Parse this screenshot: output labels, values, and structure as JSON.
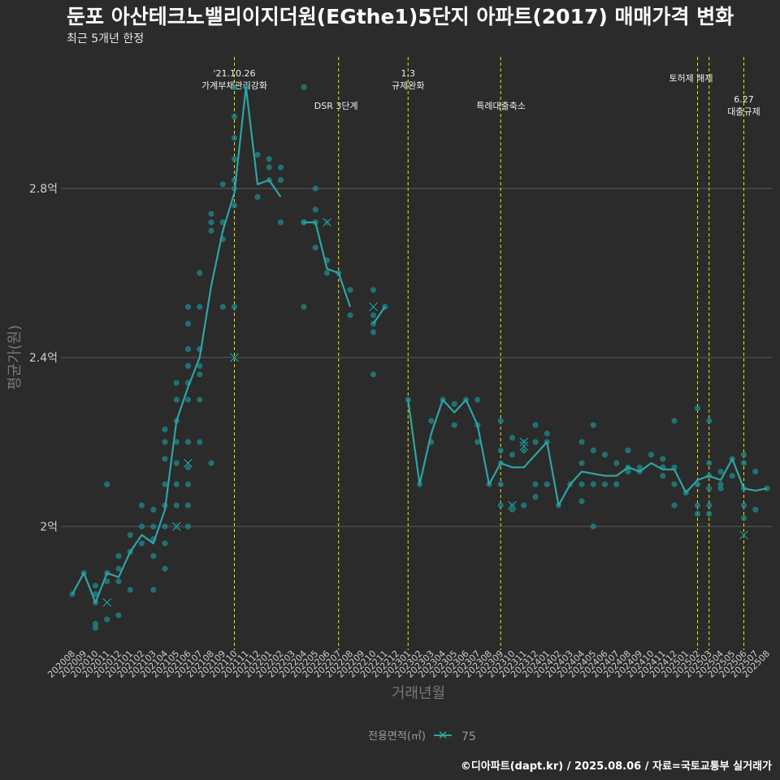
{
  "title": "둔포 아산테크노밸리이지더원(EGthe1)5단지 아파트(2017) 매매가격 변화",
  "subtitle": "최근 5개년 한정",
  "caption": "©디아파트(dapt.kr) / 2025.08.06 / 자료=국토교통부 실거래가",
  "colors": {
    "background": "#2b2b2b",
    "grid": "#5a5a5a",
    "line": "#2fa3a3",
    "point": "#1f8a8a",
    "event_line": "#e8e800"
  },
  "chart_data": {
    "type": "line",
    "xlabel": "거래년월",
    "ylabel": "평균가(원)",
    "ylim": [
      1.72,
      3.13
    ],
    "y_ticks": [
      {
        "value": 2.0,
        "label": "2억"
      },
      {
        "value": 2.4,
        "label": "2.4억"
      },
      {
        "value": 2.8,
        "label": "2.8억"
      }
    ],
    "grid": true,
    "categories": [
      "202008",
      "202009",
      "202010",
      "202011",
      "202012",
      "202101",
      "202102",
      "202103",
      "202104",
      "202105",
      "202106",
      "202107",
      "202108",
      "202109",
      "202110",
      "202111",
      "202112",
      "202201",
      "202202",
      "202203",
      "202204",
      "202205",
      "202206",
      "202207",
      "202208",
      "202209",
      "202210",
      "202211",
      "202212",
      "202301",
      "202302",
      "202303",
      "202304",
      "202305",
      "202306",
      "202307",
      "202308",
      "202309",
      "202310",
      "202311",
      "202312",
      "202401",
      "202402",
      "202403",
      "202404",
      "202405",
      "202406",
      "202407",
      "202408",
      "202409",
      "202410",
      "202411",
      "202412",
      "202501",
      "202502",
      "202503",
      "202504",
      "202505",
      "202506",
      "202507",
      "202508"
    ],
    "series": [
      {
        "name": "75",
        "values": [
          1.84,
          1.89,
          1.82,
          1.89,
          1.88,
          1.94,
          1.98,
          1.96,
          2.04,
          2.25,
          2.33,
          2.4,
          2.57,
          2.7,
          2.79,
          3.04,
          2.81,
          2.82,
          2.78,
          null,
          2.72,
          2.72,
          2.61,
          2.6,
          2.52,
          null,
          2.48,
          2.52,
          null,
          2.3,
          2.1,
          2.22,
          2.3,
          2.27,
          2.3,
          2.24,
          2.1,
          2.15,
          2.14,
          2.14,
          2.17,
          2.2,
          2.05,
          2.1,
          2.13,
          2.125,
          2.12,
          2.12,
          2.14,
          2.13,
          2.15,
          2.135,
          2.135,
          2.08,
          2.11,
          2.12,
          2.11,
          2.16,
          2.09,
          2.085,
          2.09
        ]
      }
    ],
    "scatter": [
      [
        0,
        1.84
      ],
      [
        1,
        1.89
      ],
      [
        2,
        1.86
      ],
      [
        2,
        1.84
      ],
      [
        2,
        1.82
      ],
      [
        2,
        1.77
      ],
      [
        2,
        1.76
      ],
      [
        3,
        1.89
      ],
      [
        3,
        1.87
      ],
      [
        3,
        1.78
      ],
      [
        3,
        2.1
      ],
      [
        4,
        1.93
      ],
      [
        4,
        1.9
      ],
      [
        4,
        1.87
      ],
      [
        4,
        1.79
      ],
      [
        5,
        1.98
      ],
      [
        5,
        1.94
      ],
      [
        5,
        1.85
      ],
      [
        6,
        2.05
      ],
      [
        6,
        2.0
      ],
      [
        6,
        1.96
      ],
      [
        7,
        2.04
      ],
      [
        7,
        2.0
      ],
      [
        7,
        1.97
      ],
      [
        7,
        1.93
      ],
      [
        7,
        1.85
      ],
      [
        8,
        2.23
      ],
      [
        8,
        2.2
      ],
      [
        8,
        2.16
      ],
      [
        8,
        2.1
      ],
      [
        8,
        2.05
      ],
      [
        8,
        2.0
      ],
      [
        8,
        1.96
      ],
      [
        8,
        1.9
      ],
      [
        9,
        2.34
      ],
      [
        9,
        2.3
      ],
      [
        9,
        2.25
      ],
      [
        9,
        2.2
      ],
      [
        9,
        2.15
      ],
      [
        9,
        2.1
      ],
      [
        9,
        2.05
      ],
      [
        9,
        2.0
      ],
      [
        10,
        2.52
      ],
      [
        10,
        2.48
      ],
      [
        10,
        2.42
      ],
      [
        10,
        2.38
      ],
      [
        10,
        2.34
      ],
      [
        10,
        2.3
      ],
      [
        10,
        2.2
      ],
      [
        10,
        2.14
      ],
      [
        10,
        2.1
      ],
      [
        10,
        2.05
      ],
      [
        10,
        2.0
      ],
      [
        11,
        2.6
      ],
      [
        11,
        2.52
      ],
      [
        11,
        2.42
      ],
      [
        11,
        2.38
      ],
      [
        11,
        2.36
      ],
      [
        11,
        2.3
      ],
      [
        11,
        2.2
      ],
      [
        12,
        2.74
      ],
      [
        12,
        2.72
      ],
      [
        12,
        2.7
      ],
      [
        12,
        2.15
      ],
      [
        13,
        2.81
      ],
      [
        13,
        2.72
      ],
      [
        13,
        2.68
      ],
      [
        13,
        2.52
      ],
      [
        14,
        3.04
      ],
      [
        14,
        2.97
      ],
      [
        14,
        2.92
      ],
      [
        14,
        2.87
      ],
      [
        14,
        2.82
      ],
      [
        14,
        2.8
      ],
      [
        14,
        2.76
      ],
      [
        14,
        2.52
      ],
      [
        15,
        3.04
      ],
      [
        16,
        2.88
      ],
      [
        16,
        2.78
      ],
      [
        17,
        2.87
      ],
      [
        17,
        2.85
      ],
      [
        17,
        2.82
      ],
      [
        18,
        2.85
      ],
      [
        18,
        2.82
      ],
      [
        18,
        2.72
      ],
      [
        20,
        3.04
      ],
      [
        20,
        2.72
      ],
      [
        20,
        2.72
      ],
      [
        20,
        2.52
      ],
      [
        21,
        2.8
      ],
      [
        21,
        2.75
      ],
      [
        21,
        2.72
      ],
      [
        21,
        2.66
      ],
      [
        22,
        2.72
      ],
      [
        22,
        2.63
      ],
      [
        22,
        2.6
      ],
      [
        23,
        2.6
      ],
      [
        24,
        2.56
      ],
      [
        24,
        2.5
      ],
      [
        26,
        2.56
      ],
      [
        26,
        2.5
      ],
      [
        26,
        2.48
      ],
      [
        26,
        2.46
      ],
      [
        26,
        2.36
      ],
      [
        27,
        2.52
      ],
      [
        29,
        2.3
      ],
      [
        30,
        2.1
      ],
      [
        31,
        2.25
      ],
      [
        31,
        2.2
      ],
      [
        32,
        2.3
      ],
      [
        33,
        2.29
      ],
      [
        33,
        2.24
      ],
      [
        34,
        2.3
      ],
      [
        35,
        2.3
      ],
      [
        35,
        2.24
      ],
      [
        35,
        2.2
      ],
      [
        36,
        2.1
      ],
      [
        37,
        2.25
      ],
      [
        37,
        2.18
      ],
      [
        37,
        2.15
      ],
      [
        37,
        2.1
      ],
      [
        37,
        2.05
      ],
      [
        38,
        2.21
      ],
      [
        38,
        2.17
      ],
      [
        38,
        2.05
      ],
      [
        38,
        2.04
      ],
      [
        39,
        2.2
      ],
      [
        39,
        2.18
      ],
      [
        39,
        2.05
      ],
      [
        40,
        2.24
      ],
      [
        40,
        2.2
      ],
      [
        40,
        2.1
      ],
      [
        40,
        2.07
      ],
      [
        41,
        2.22
      ],
      [
        41,
        2.2
      ],
      [
        41,
        2.1
      ],
      [
        42,
        2.05
      ],
      [
        43,
        2.1
      ],
      [
        44,
        2.2
      ],
      [
        44,
        2.15
      ],
      [
        44,
        2.1
      ],
      [
        44,
        2.06
      ],
      [
        45,
        2.24
      ],
      [
        45,
        2.18
      ],
      [
        45,
        2.1
      ],
      [
        45,
        2.0
      ],
      [
        46,
        2.17
      ],
      [
        46,
        2.1
      ],
      [
        47,
        2.15
      ],
      [
        47,
        2.1
      ],
      [
        48,
        2.18
      ],
      [
        48,
        2.14
      ],
      [
        48,
        2.13
      ],
      [
        49,
        2.14
      ],
      [
        49,
        2.13
      ],
      [
        50,
        2.17
      ],
      [
        51,
        2.16
      ],
      [
        51,
        2.14
      ],
      [
        51,
        2.12
      ],
      [
        52,
        2.25
      ],
      [
        52,
        2.14
      ],
      [
        52,
        2.1
      ],
      [
        52,
        2.05
      ],
      [
        53,
        2.08
      ],
      [
        54,
        2.28
      ],
      [
        54,
        2.1
      ],
      [
        54,
        2.05
      ],
      [
        54,
        2.03
      ],
      [
        55,
        2.25
      ],
      [
        55,
        2.15
      ],
      [
        55,
        2.12
      ],
      [
        55,
        2.09
      ],
      [
        55,
        2.05
      ],
      [
        55,
        2.03
      ],
      [
        56,
        2.13
      ],
      [
        56,
        2.1
      ],
      [
        56,
        2.09
      ],
      [
        57,
        2.16
      ],
      [
        57,
        2.12
      ],
      [
        58,
        2.17
      ],
      [
        58,
        2.15
      ],
      [
        58,
        2.09
      ],
      [
        58,
        2.05
      ],
      [
        58,
        2.02
      ],
      [
        59,
        2.13
      ],
      [
        59,
        2.04
      ],
      [
        60,
        2.09
      ]
    ],
    "cross_marks": [
      [
        3,
        1.82
      ],
      [
        9,
        2.0
      ],
      [
        10,
        2.15
      ],
      [
        14,
        2.4
      ],
      [
        22,
        2.72
      ],
      [
        26,
        2.52
      ],
      [
        38,
        2.05
      ],
      [
        39,
        2.2
      ],
      [
        39,
        2.19
      ],
      [
        58,
        1.98
      ]
    ],
    "events": [
      {
        "index": 14,
        "label": "'21.10.26\n가계부채관리강화",
        "row": 0
      },
      {
        "index": 23,
        "label": "DSR 3단계",
        "row": 2
      },
      {
        "index": 29,
        "label": "1.3\n규제완화",
        "row": 0
      },
      {
        "index": 37,
        "label": "특례대출축소",
        "row": 2
      },
      {
        "index": 54,
        "label": "토허제 해제",
        "row": 1
      },
      {
        "index": 55,
        "label": "",
        "row": -1
      },
      {
        "index": 58,
        "label": "6.27\n대출규제",
        "row": 3
      }
    ],
    "legend": {
      "title": "전용면적(㎡)",
      "label": "75",
      "position": "bottom"
    }
  }
}
